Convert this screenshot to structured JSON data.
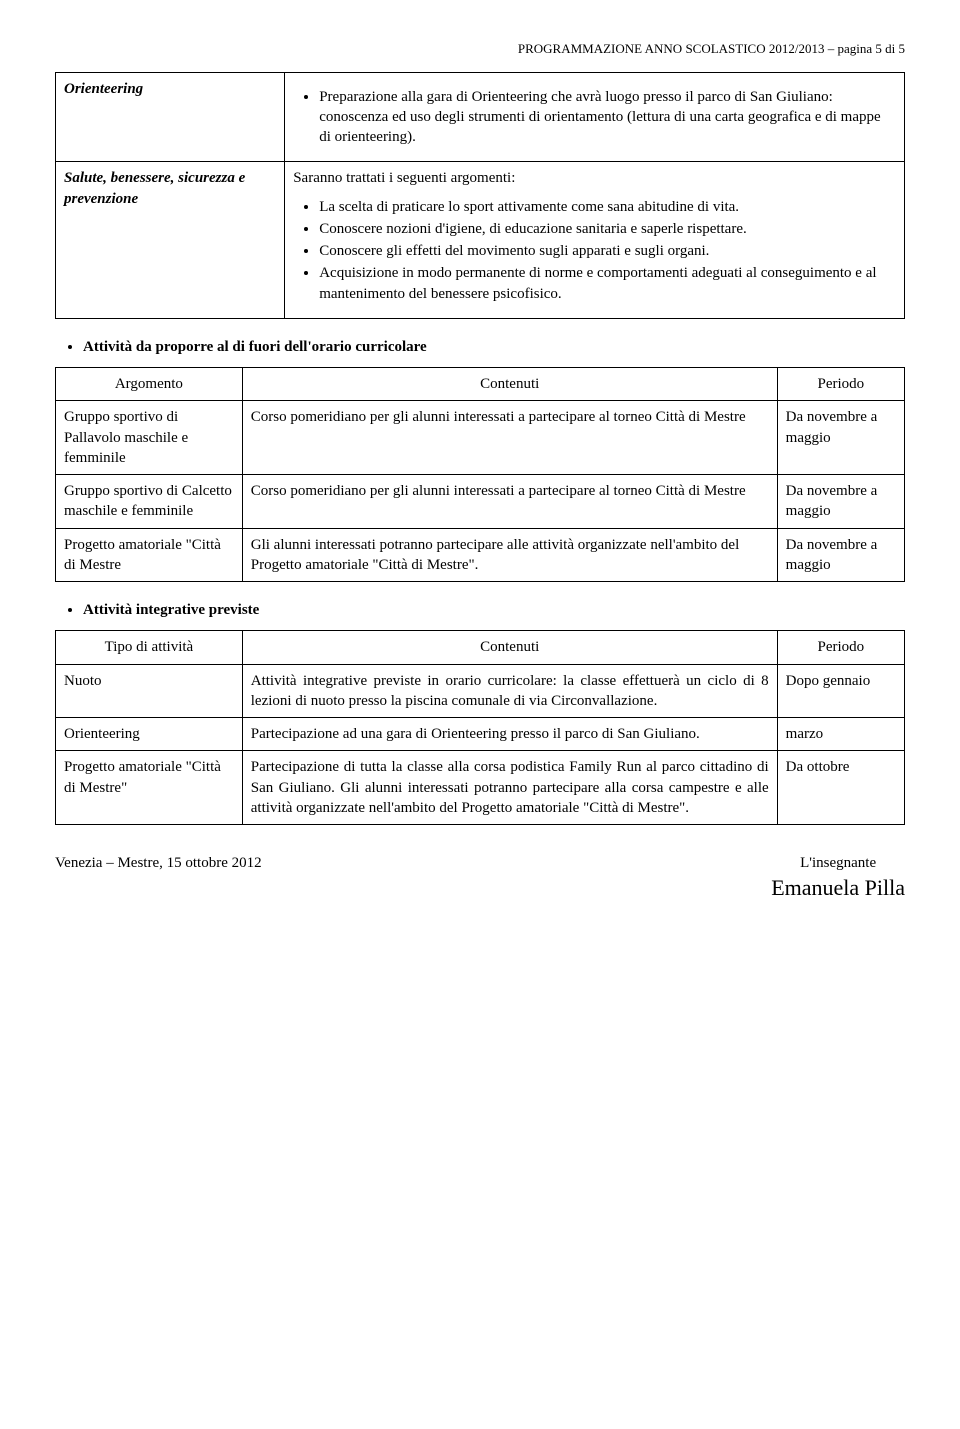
{
  "header": "PROGRAMMAZIONE ANNO SCOLASTICO 2012/2013 – pagina 5 di 5",
  "table1": {
    "row1": {
      "label": "Orienteering",
      "intro": "Preparazione alla gara di Orienteering che avrà luogo presso il parco di San Giuliano: conoscenza ed uso degli strumenti di orientamento (lettura di una carta geografica e di mappe di orienteering)."
    },
    "row2": {
      "label": "Salute, benessere, sicurezza e prevenzione",
      "intro": "Saranno trattati i seguenti argomenti:",
      "items": {
        "0": "La scelta di praticare lo sport attivamente come sana abitudine di vita.",
        "1": "Conoscere nozioni d'igiene, di educazione sanitaria e saperle rispettare.",
        "2": "Conoscere gli effetti del movimento sugli apparati e sugli organi.",
        "3": "Acquisizione in modo permanente di norme e comportamenti adeguati al conseguimento e al mantenimento del benessere psicofisico."
      }
    }
  },
  "section2": {
    "heading": "Attività da proporre al di fuori dell'orario curricolare",
    "headers": {
      "arg": "Argomento",
      "cont": "Contenuti",
      "per": "Periodo"
    },
    "rows": {
      "0": {
        "arg": "Gruppo sportivo di Pallavolo  maschile e femminile",
        "cont": "Corso pomeridiano per gli alunni interessati a partecipare al torneo Città di Mestre",
        "per": "Da novembre a maggio"
      },
      "1": {
        "arg": "Gruppo sportivo di Calcetto maschile e femminile",
        "cont": "Corso pomeridiano per gli alunni interessati a partecipare al torneo Città di Mestre",
        "per": "Da novembre a maggio"
      },
      "2": {
        "arg": "Progetto amatoriale \"Città di Mestre",
        "cont": "Gli alunni interessati potranno partecipare alle attività organizzate nell'ambito del Progetto amatoriale \"Città di Mestre\".",
        "per": "Da novembre a maggio"
      }
    }
  },
  "section3": {
    "heading": "Attività integrative previste",
    "headers": {
      "tipo": "Tipo di attività",
      "cont": "Contenuti",
      "per": "Periodo"
    },
    "rows": {
      "0": {
        "tipo": "Nuoto",
        "cont": "Attività integrative previste in orario curricolare: la classe effettuerà un ciclo di 8 lezioni di nuoto presso la piscina comunale di via Circonvallazione.",
        "per": "Dopo gennaio"
      },
      "1": {
        "tipo": "Orienteering",
        "cont": "Partecipazione ad una gara di Orienteering presso il parco di San Giuliano.",
        "per": "marzo"
      },
      "2": {
        "tipo": "Progetto amatoriale \"Città di Mestre\"",
        "cont": "Partecipazione di tutta la classe alla corsa podistica Family Run al parco cittadino di San Giuliano.\nGli alunni interessati potranno partecipare alla corsa campestre e alle attività organizzate nell'ambito del Progetto amatoriale \"Città di Mestre\".",
        "per": "Da ottobre"
      }
    }
  },
  "footer": {
    "place_date": "Venezia – Mestre, 15 ottobre 2012",
    "role": "L'insegnante",
    "name": "Emanuela Pilla"
  }
}
